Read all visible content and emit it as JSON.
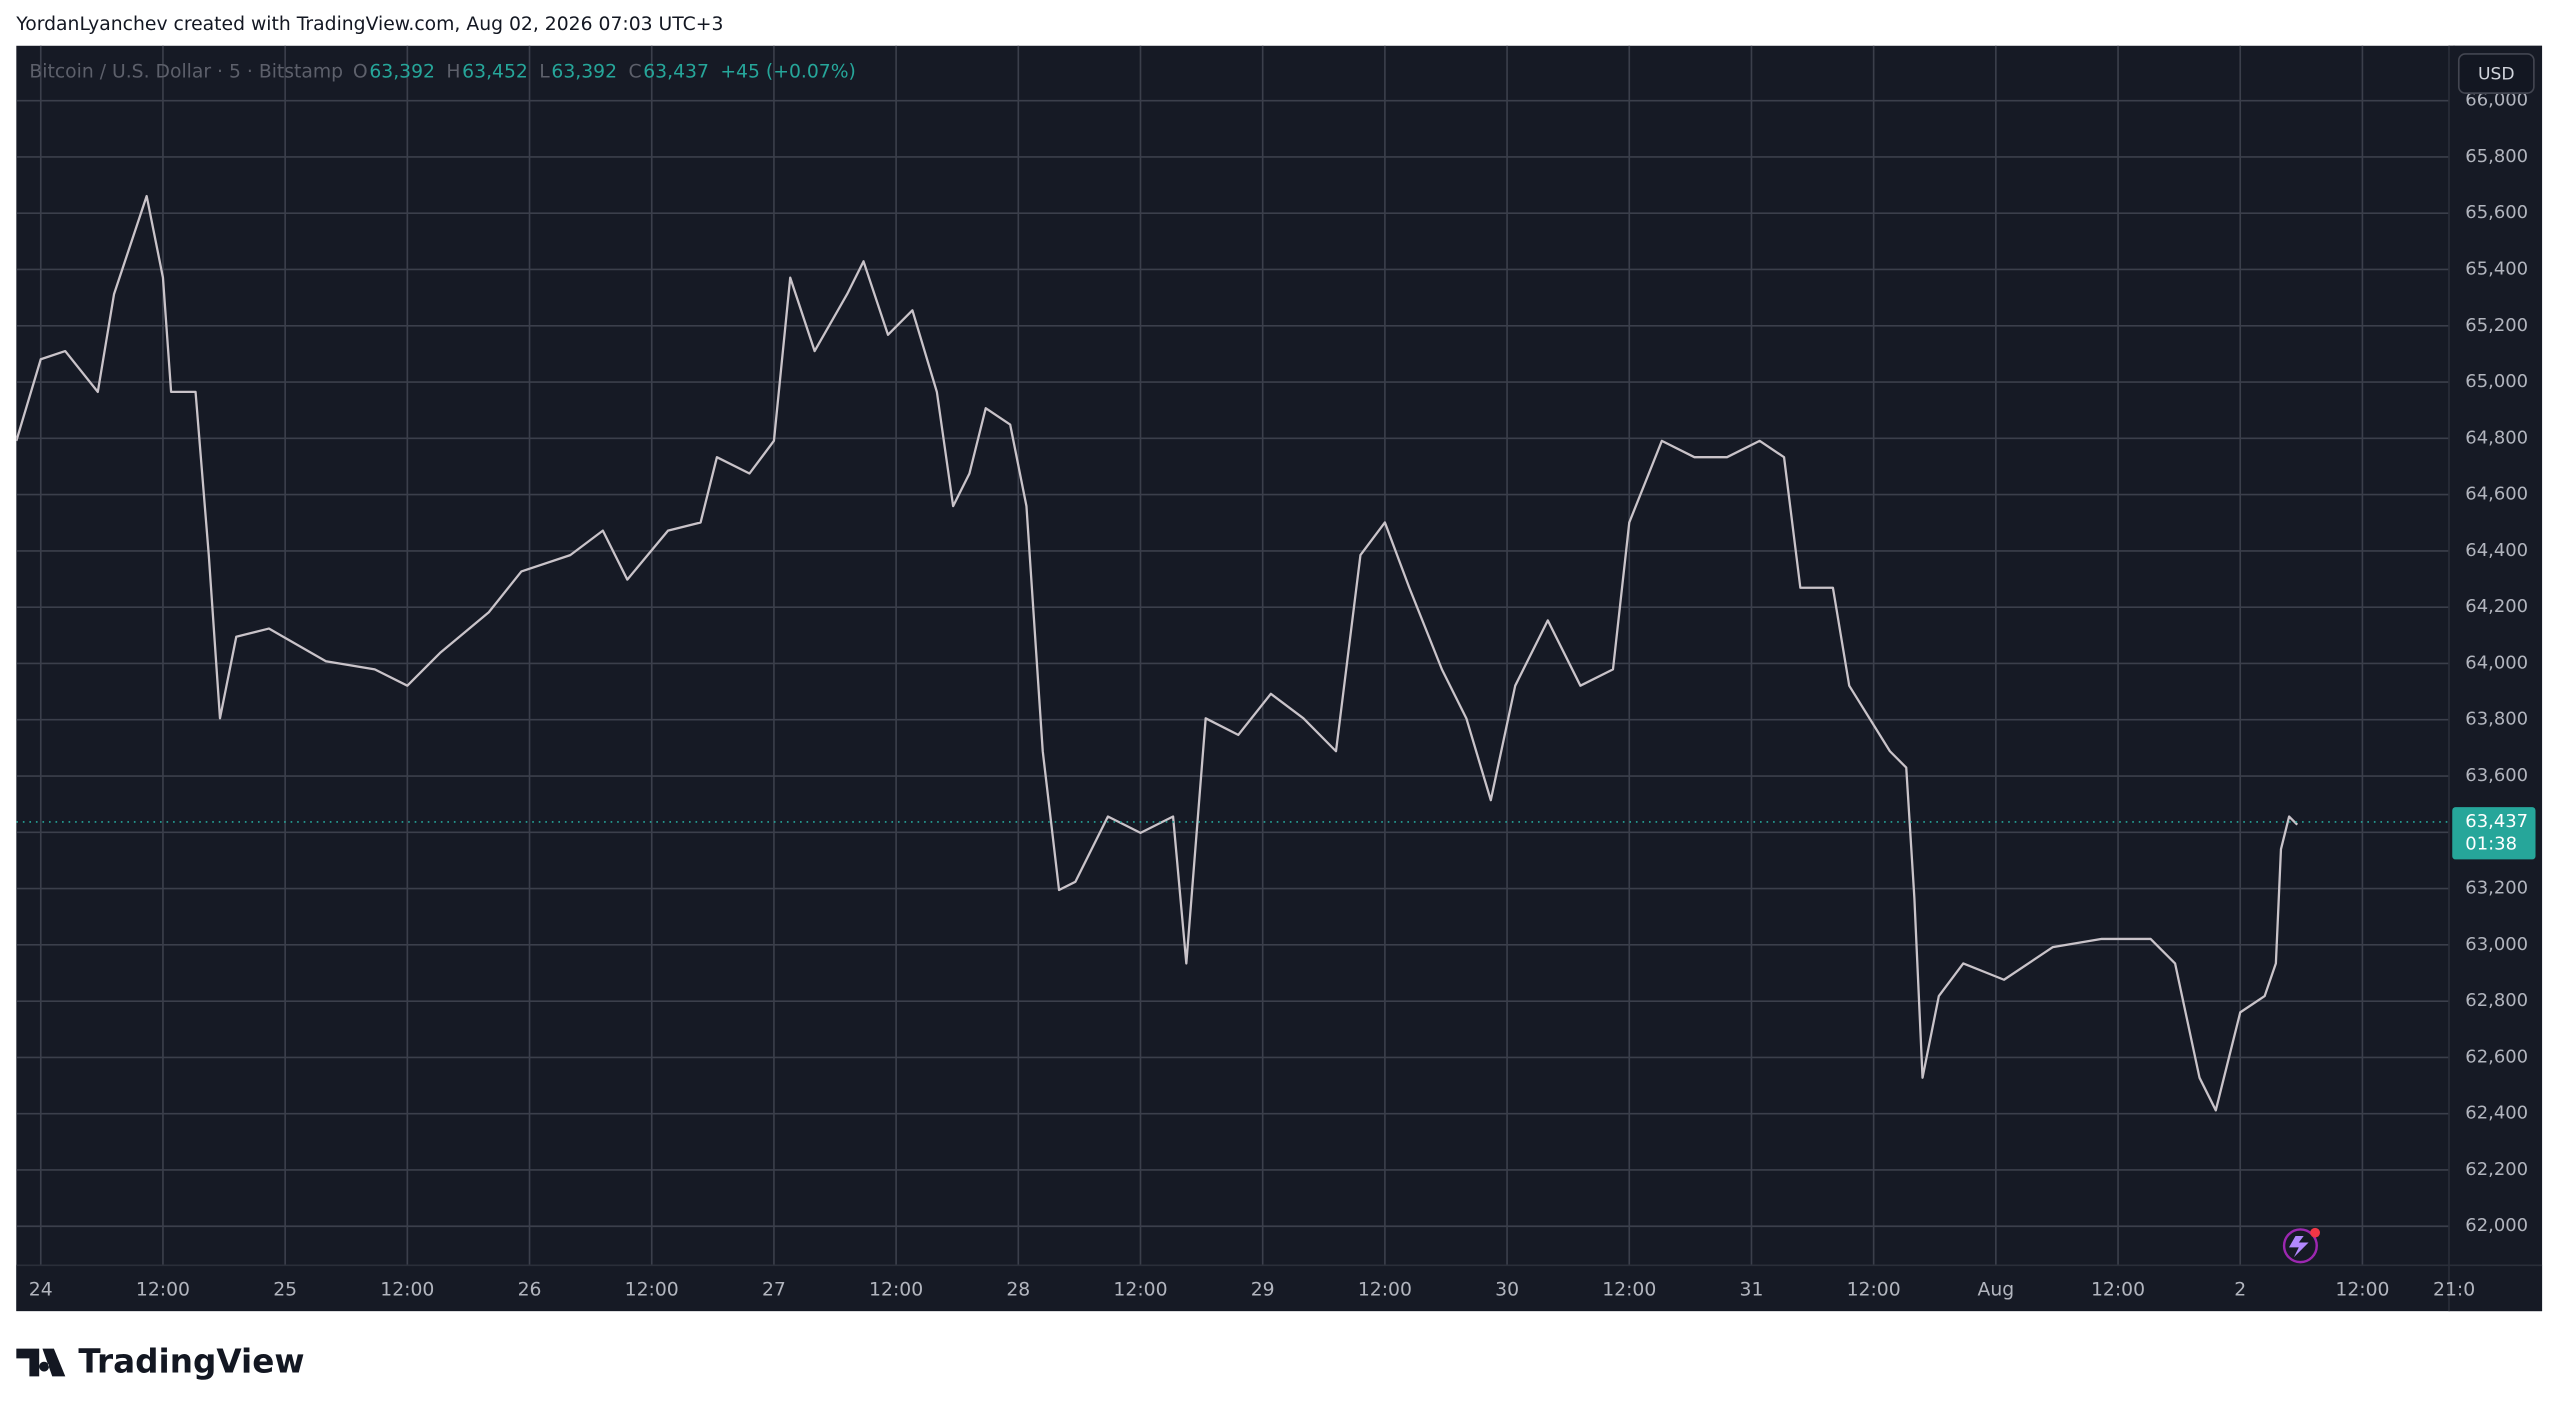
{
  "attribution": "YordanLyanchev created with TradingView.com, Aug 02, 2026 07:03 UTC+3",
  "logo": "TradingView",
  "currency_button": "USD",
  "chart_data": {
    "type": "line",
    "symbol": "Bitcoin / U.S. Dollar · 5 · Bitstamp",
    "legend": [
      {
        "label": "O",
        "value": "63,392"
      },
      {
        "label": "H",
        "value": "63,452"
      },
      {
        "label": "L",
        "value": "63,392"
      },
      {
        "label": "C",
        "value": "63,437"
      }
    ],
    "change": "+45 (+0.07%)",
    "last_price": {
      "value": 63437,
      "label": "63,437"
    },
    "countdown": "01:38",
    "grid": true,
    "series": [
      {
        "color": "#c9c3c9",
        "values": [
          64791,
          65081,
          65110,
          64965,
          65313,
          65661,
          65371,
          64965,
          64965,
          64385,
          63805,
          64095,
          64124,
          64008,
          63979,
          63921,
          64037,
          64182,
          64327,
          64385,
          64472,
          64298,
          64472,
          64501,
          64733,
          64675,
          64791,
          65371,
          65110,
          65313,
          65429,
          65168,
          65255,
          64965,
          64559,
          64675,
          64907,
          64849,
          64559,
          63688,
          63195,
          63224,
          63456,
          63398,
          63456,
          62934,
          63805,
          63746,
          63892,
          63805,
          63688,
          64385,
          64501,
          64269,
          63979,
          63805,
          63514,
          63921,
          64153,
          63921,
          63979,
          64501,
          64791,
          64733,
          64733,
          64791,
          64733,
          64269,
          64269,
          63921,
          63688,
          63630,
          63166,
          62528,
          62818,
          62934,
          62876,
          62992,
          63021,
          63021,
          62934,
          62528,
          62412,
          62760,
          62818,
          62934,
          63340,
          63456,
          63427
        ]
      }
    ],
    "x": [
      -2.4,
      0,
      2.4,
      5.6,
      7.2,
      10.4,
      12,
      12.8,
      15.2,
      16.5,
      17.6,
      19.2,
      22.4,
      28,
      32.8,
      36,
      39.2,
      44,
      47.2,
      52,
      55.2,
      57.6,
      61.6,
      64.8,
      66.4,
      69.6,
      72,
      73.6,
      76,
      79.2,
      80.8,
      83.2,
      85.6,
      88,
      89.6,
      91.2,
      92.8,
      95.2,
      96.8,
      98.4,
      100,
      101.6,
      104.8,
      108,
      111.2,
      112.5,
      114.4,
      117.6,
      120.8,
      124,
      127.2,
      129.6,
      132,
      134.4,
      137.6,
      140,
      142.4,
      144.8,
      148,
      151.2,
      154.4,
      156,
      159.2,
      162.4,
      165.6,
      168.8,
      171.2,
      172.8,
      176,
      177.6,
      181.6,
      183.2,
      184,
      184.8,
      186.4,
      188.8,
      192.8,
      197.6,
      202.4,
      207.2,
      209.6,
      212,
      213.6,
      216,
      218.4,
      219.5,
      220,
      220.8,
      221.6
    ],
    "xlim": [
      -2.4,
      236.5
    ],
    "xticks": [
      {
        "value": 0,
        "label": "24"
      },
      {
        "value": 12,
        "label": "12:00"
      },
      {
        "value": 24,
        "label": "25"
      },
      {
        "value": 36,
        "label": "12:00"
      },
      {
        "value": 48,
        "label": "26"
      },
      {
        "value": 60,
        "label": "12:00"
      },
      {
        "value": 72,
        "label": "27"
      },
      {
        "value": 84,
        "label": "12:00"
      },
      {
        "value": 96,
        "label": "28"
      },
      {
        "value": 108,
        "label": "12:00"
      },
      {
        "value": 120,
        "label": "29"
      },
      {
        "value": 132,
        "label": "12:00"
      },
      {
        "value": 144,
        "label": "30"
      },
      {
        "value": 156,
        "label": "12:00"
      },
      {
        "value": 168,
        "label": "31"
      },
      {
        "value": 180,
        "label": "12:00"
      },
      {
        "value": 192,
        "label": "Aug"
      },
      {
        "value": 204,
        "label": "12:00"
      },
      {
        "value": 216,
        "label": "2"
      },
      {
        "value": 228,
        "label": "12:00"
      },
      {
        "value": 237,
        "label": "21:0"
      }
    ],
    "ylim": [
      61861,
      66195
    ],
    "yticks": [
      {
        "value": 62000,
        "label": "62,000"
      },
      {
        "value": 62200,
        "label": "62,200"
      },
      {
        "value": 62400,
        "label": "62,400"
      },
      {
        "value": 62600,
        "label": "62,600"
      },
      {
        "value": 62800,
        "label": "62,800"
      },
      {
        "value": 63000,
        "label": "63,000"
      },
      {
        "value": 63200,
        "label": "63,200"
      },
      {
        "value": 63400,
        "label": "63,400"
      },
      {
        "value": 63600,
        "label": "63,600"
      },
      {
        "value": 63800,
        "label": "63,800"
      },
      {
        "value": 64000,
        "label": "64,000"
      },
      {
        "value": 64200,
        "label": "64,200"
      },
      {
        "value": 64400,
        "label": "64,400"
      },
      {
        "value": 64600,
        "label": "64,600"
      },
      {
        "value": 64800,
        "label": "64,800"
      },
      {
        "value": 65000,
        "label": "65,000"
      },
      {
        "value": 65200,
        "label": "65,200"
      },
      {
        "value": 65400,
        "label": "65,400"
      },
      {
        "value": 65600,
        "label": "65,600"
      },
      {
        "value": 65800,
        "label": "65,800"
      },
      {
        "value": 66000,
        "label": "66,000"
      }
    ]
  }
}
